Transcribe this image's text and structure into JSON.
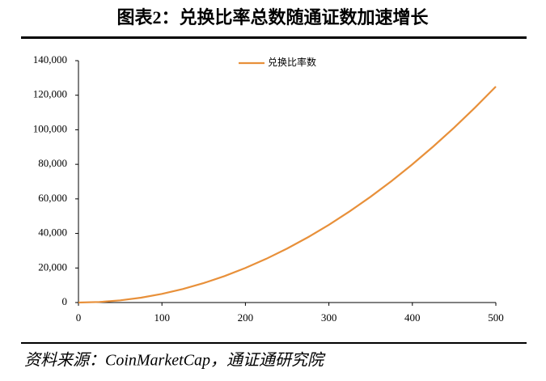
{
  "chart_data": {
    "type": "line",
    "title": "图表2：兑换比率总数随通证数加速增长",
    "source": "资料来源：CoinMarketCap，通证通研究院",
    "x": [
      0,
      25,
      50,
      75,
      100,
      125,
      150,
      175,
      200,
      225,
      250,
      275,
      300,
      325,
      350,
      375,
      400,
      425,
      450,
      475,
      500
    ],
    "series": [
      {
        "name": "兑换比率数",
        "color": "#e8903a",
        "values": [
          0,
          312.5,
          1250,
          2812.5,
          5000,
          7812.5,
          11250,
          15312.5,
          20000,
          25312.5,
          31250,
          37812.5,
          45000,
          52812.5,
          61250,
          70312.5,
          80000,
          90312.5,
          101250,
          112812.5,
          125000
        ]
      }
    ],
    "xlim": [
      0,
      500
    ],
    "xticks": [
      0,
      100,
      200,
      300,
      400,
      500
    ],
    "ylim": [
      0,
      140000
    ],
    "yticks": [
      0,
      {
        "value": 20000,
        "label": "20,000"
      },
      {
        "value": 40000,
        "label": "40,000"
      },
      {
        "value": 60000,
        "label": "60,000"
      },
      {
        "value": 80000,
        "label": "80,000"
      },
      {
        "value": 100000,
        "label": "100,000"
      },
      {
        "value": 120000,
        "label": "120,000"
      },
      {
        "value": 140000,
        "label": "140,000"
      }
    ],
    "grid": false,
    "legend": "top"
  }
}
